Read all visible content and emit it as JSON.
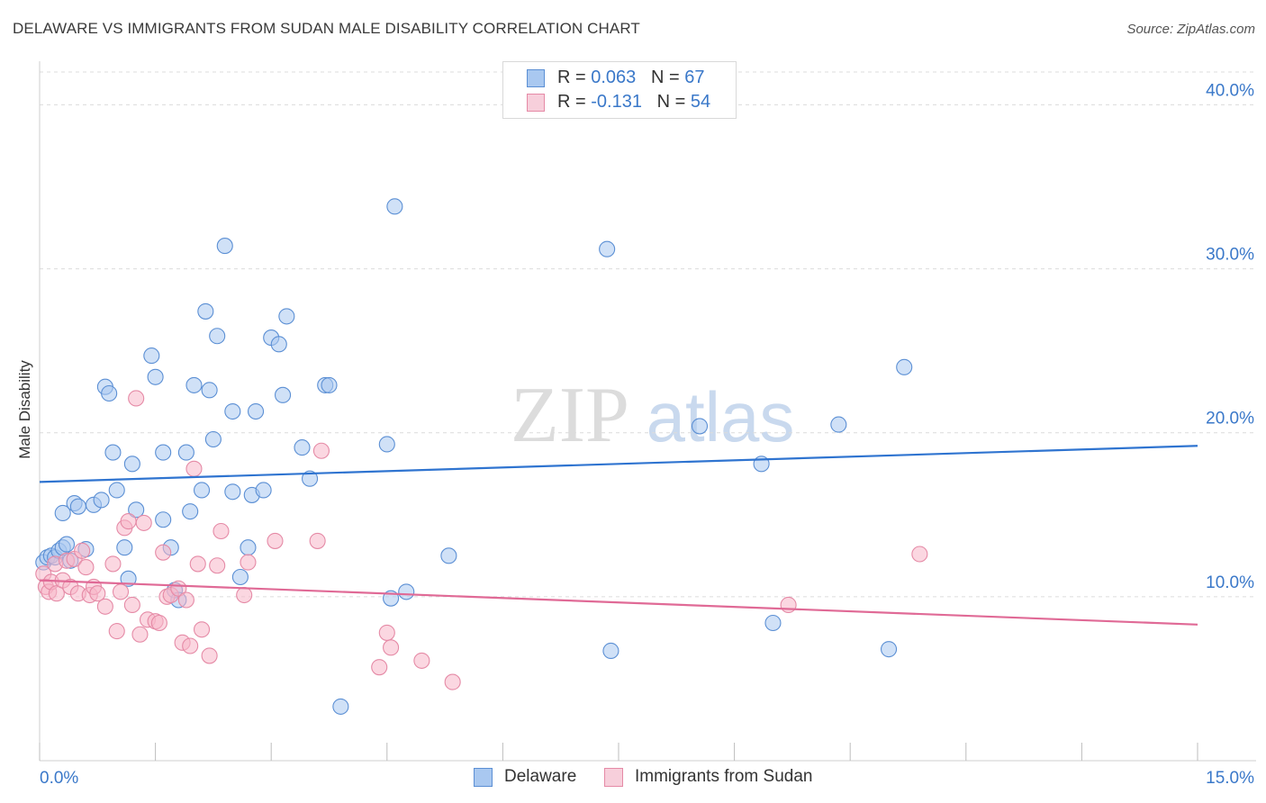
{
  "title": "DELAWARE VS IMMIGRANTS FROM SUDAN MALE DISABILITY CORRELATION CHART",
  "source": "Source: ZipAtlas.com",
  "watermark": {
    "part1": "ZIP",
    "part2": "atlas"
  },
  "colors": {
    "delaware_fill": "#a9c8f0",
    "delaware_stroke": "#5b8fd4",
    "delaware_line": "#2f74d0",
    "sudan_fill": "#f7b6c9",
    "sudan_stroke": "#e58aa6",
    "sudan_line": "#e06a96",
    "axis_label": "#3a78c9",
    "grid": "#dcdcdc"
  },
  "legend": {
    "rows": [
      {
        "r_label": "R = ",
        "r_value": "0.063",
        "n_label": "N = ",
        "n_value": "67"
      },
      {
        "r_label": "R = ",
        "r_value": "-0.131",
        "n_label": "N = ",
        "n_value": "54"
      }
    ]
  },
  "chart_data": {
    "type": "scatter",
    "title": "DELAWARE VS IMMIGRANTS FROM SUDAN MALE DISABILITY CORRELATION CHART",
    "xlabel": "",
    "ylabel": "Male Disability",
    "xlim": [
      0,
      15
    ],
    "ylim": [
      0,
      42
    ],
    "x_tick_labels": [
      "0.0%",
      "15.0%"
    ],
    "y_ticks": [
      10,
      20,
      30,
      40
    ],
    "y_tick_labels": [
      "10.0%",
      "20.0%",
      "30.0%",
      "40.0%"
    ],
    "grid": true,
    "legend_position": "top-center",
    "series": [
      {
        "name": "Delaware",
        "trend": {
          "start": [
            0,
            17.0
          ],
          "end": [
            15,
            19.2
          ]
        },
        "points": [
          [
            0.05,
            12.1
          ],
          [
            0.1,
            12.4
          ],
          [
            0.15,
            12.5
          ],
          [
            0.2,
            12.4
          ],
          [
            0.25,
            12.8
          ],
          [
            0.3,
            13.0
          ],
          [
            0.35,
            13.2
          ],
          [
            0.4,
            12.2
          ],
          [
            0.6,
            12.9
          ],
          [
            0.45,
            15.7
          ],
          [
            0.5,
            15.5
          ],
          [
            0.7,
            15.6
          ],
          [
            0.8,
            15.9
          ],
          [
            0.3,
            15.1
          ],
          [
            0.85,
            22.8
          ],
          [
            0.9,
            22.4
          ],
          [
            0.95,
            18.8
          ],
          [
            1.0,
            16.5
          ],
          [
            1.1,
            13.0
          ],
          [
            1.15,
            11.1
          ],
          [
            1.2,
            18.1
          ],
          [
            1.25,
            15.3
          ],
          [
            1.45,
            24.7
          ],
          [
            1.5,
            23.4
          ],
          [
            1.6,
            18.8
          ],
          [
            1.6,
            14.7
          ],
          [
            1.7,
            13.0
          ],
          [
            1.75,
            10.4
          ],
          [
            1.8,
            9.8
          ],
          [
            1.9,
            18.8
          ],
          [
            1.95,
            15.2
          ],
          [
            2.0,
            22.9
          ],
          [
            2.1,
            16.5
          ],
          [
            2.15,
            27.4
          ],
          [
            2.2,
            22.6
          ],
          [
            2.25,
            19.6
          ],
          [
            2.3,
            25.9
          ],
          [
            2.4,
            31.4
          ],
          [
            2.5,
            21.3
          ],
          [
            2.5,
            16.4
          ],
          [
            2.6,
            11.2
          ],
          [
            2.7,
            13.0
          ],
          [
            2.75,
            16.2
          ],
          [
            2.8,
            21.3
          ],
          [
            2.9,
            16.5
          ],
          [
            3.0,
            25.8
          ],
          [
            3.1,
            25.4
          ],
          [
            3.15,
            22.3
          ],
          [
            3.2,
            27.1
          ],
          [
            3.4,
            19.1
          ],
          [
            3.5,
            17.2
          ],
          [
            3.7,
            22.9
          ],
          [
            3.75,
            22.9
          ],
          [
            3.9,
            3.3
          ],
          [
            4.6,
            33.8
          ],
          [
            4.5,
            19.3
          ],
          [
            4.55,
            9.9
          ],
          [
            4.75,
            10.3
          ],
          [
            5.3,
            12.5
          ],
          [
            7.35,
            31.2
          ],
          [
            7.4,
            6.7
          ],
          [
            8.55,
            20.4
          ],
          [
            9.35,
            18.1
          ],
          [
            9.5,
            8.4
          ],
          [
            10.35,
            20.5
          ],
          [
            11.0,
            6.8
          ],
          [
            11.2,
            24.0
          ]
        ]
      },
      {
        "name": "Immigrants from Sudan",
        "trend": {
          "start": [
            0,
            11.0
          ],
          "end": [
            15,
            8.3
          ]
        },
        "points": [
          [
            0.05,
            11.4
          ],
          [
            0.08,
            10.6
          ],
          [
            0.12,
            10.3
          ],
          [
            0.15,
            10.9
          ],
          [
            0.2,
            12.0
          ],
          [
            0.22,
            10.2
          ],
          [
            0.3,
            11.0
          ],
          [
            0.35,
            12.2
          ],
          [
            0.4,
            10.6
          ],
          [
            0.45,
            12.3
          ],
          [
            0.5,
            10.2
          ],
          [
            0.55,
            12.8
          ],
          [
            0.6,
            11.8
          ],
          [
            0.65,
            10.1
          ],
          [
            0.7,
            10.6
          ],
          [
            0.75,
            10.2
          ],
          [
            0.85,
            9.4
          ],
          [
            0.95,
            12.0
          ],
          [
            1.0,
            7.9
          ],
          [
            1.05,
            10.3
          ],
          [
            1.1,
            14.2
          ],
          [
            1.15,
            14.6
          ],
          [
            1.2,
            9.5
          ],
          [
            1.3,
            7.7
          ],
          [
            1.35,
            14.5
          ],
          [
            1.4,
            8.6
          ],
          [
            1.5,
            8.5
          ],
          [
            1.55,
            8.4
          ],
          [
            1.6,
            12.7
          ],
          [
            1.65,
            10.0
          ],
          [
            1.7,
            10.1
          ],
          [
            1.8,
            10.5
          ],
          [
            1.85,
            7.2
          ],
          [
            1.9,
            9.8
          ],
          [
            1.95,
            7.0
          ],
          [
            2.0,
            17.8
          ],
          [
            2.05,
            12.0
          ],
          [
            2.1,
            8.0
          ],
          [
            2.2,
            6.4
          ],
          [
            2.3,
            11.9
          ],
          [
            2.35,
            14.0
          ],
          [
            1.25,
            22.1
          ],
          [
            2.65,
            10.1
          ],
          [
            2.7,
            12.1
          ],
          [
            3.05,
            13.4
          ],
          [
            3.65,
            18.9
          ],
          [
            3.6,
            13.4
          ],
          [
            4.4,
            5.7
          ],
          [
            4.5,
            7.8
          ],
          [
            4.55,
            6.9
          ],
          [
            4.95,
            6.1
          ],
          [
            5.35,
            4.8
          ],
          [
            9.7,
            9.5
          ],
          [
            11.4,
            12.6
          ]
        ]
      }
    ]
  },
  "bottom_legend": {
    "items": [
      "Delaware",
      "Immigrants from Sudan"
    ]
  }
}
